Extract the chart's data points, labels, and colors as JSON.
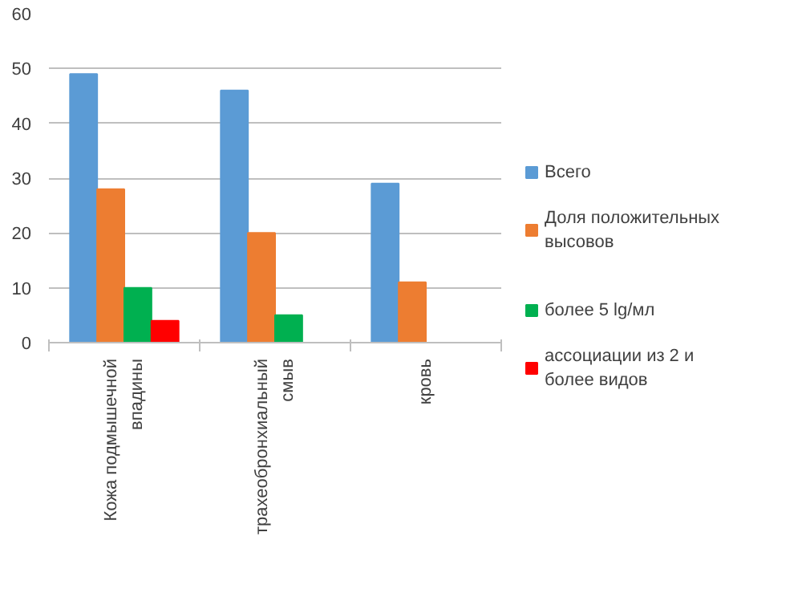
{
  "chart_data": {
    "type": "bar",
    "categories": [
      "Кожа подмышечной\nвпадины",
      "трахеобронхиальный\nсмыв",
      "кровь"
    ],
    "series": [
      {
        "name": "Всего",
        "color": "#5b9bd5",
        "values": [
          49,
          46,
          29
        ]
      },
      {
        "name": "Доля положительных\nвысовов",
        "color": "#ed7d31",
        "values": [
          28,
          20,
          11
        ]
      },
      {
        "name": "более 5 lg/мл",
        "color": "#00b050",
        "values": [
          10,
          5,
          null
        ]
      },
      {
        "name": "ассоциации из 2 и\nболее видов",
        "color": "#ff0000",
        "values": [
          4,
          null,
          null
        ]
      }
    ],
    "ylim": [
      0,
      60
    ],
    "yticks": [
      0,
      10,
      20,
      30,
      40,
      50,
      60
    ],
    "grid": "y",
    "legend": "right"
  }
}
